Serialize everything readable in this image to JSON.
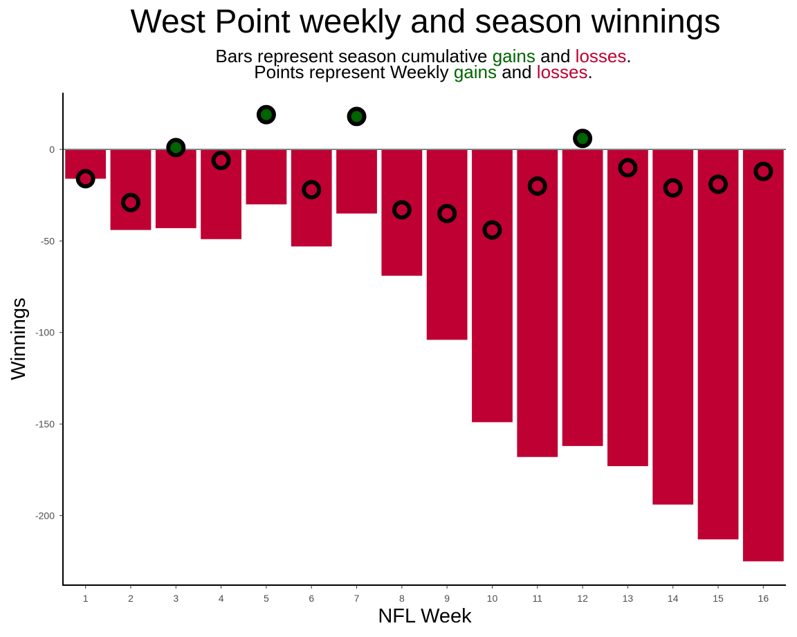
{
  "chart_data": {
    "type": "bar",
    "title": "West Point weekly and season winnings",
    "subtitle_lines": [
      {
        "pre": "Bars represent season cumulative ",
        "gain_word": "gains",
        "mid": " and ",
        "loss_word": "losses",
        "post": "."
      },
      {
        "pre": "Points represent Weekly ",
        "gain_word": "gains",
        "mid": " and ",
        "loss_word": "losses",
        "post": "."
      }
    ],
    "xlabel": "NFL Week",
    "ylabel": "Winnings",
    "categories": [
      "1",
      "2",
      "3",
      "4",
      "5",
      "6",
      "7",
      "8",
      "9",
      "10",
      "11",
      "12",
      "13",
      "14",
      "15",
      "16"
    ],
    "series": [
      {
        "values": [
          -16,
          -44,
          -43,
          -49,
          -30,
          -53,
          -35,
          -69,
          -104,
          -149,
          -168,
          -162,
          -173,
          -194,
          -213,
          -225
        ]
      },
      {
        "values": [
          -16,
          -29,
          1,
          -6,
          19,
          -22,
          18,
          -33,
          -35,
          -44,
          -20,
          6,
          -10,
          -21,
          -19,
          -12
        ]
      }
    ],
    "ylim": [
      -238,
      31
    ],
    "yticks": [
      0,
      -50,
      -100,
      -150,
      -200
    ],
    "grid": false,
    "colors": {
      "gain": "#006400",
      "loss": "#BE0032",
      "marker_outline": "#000000",
      "zero_line": "#808080"
    }
  }
}
